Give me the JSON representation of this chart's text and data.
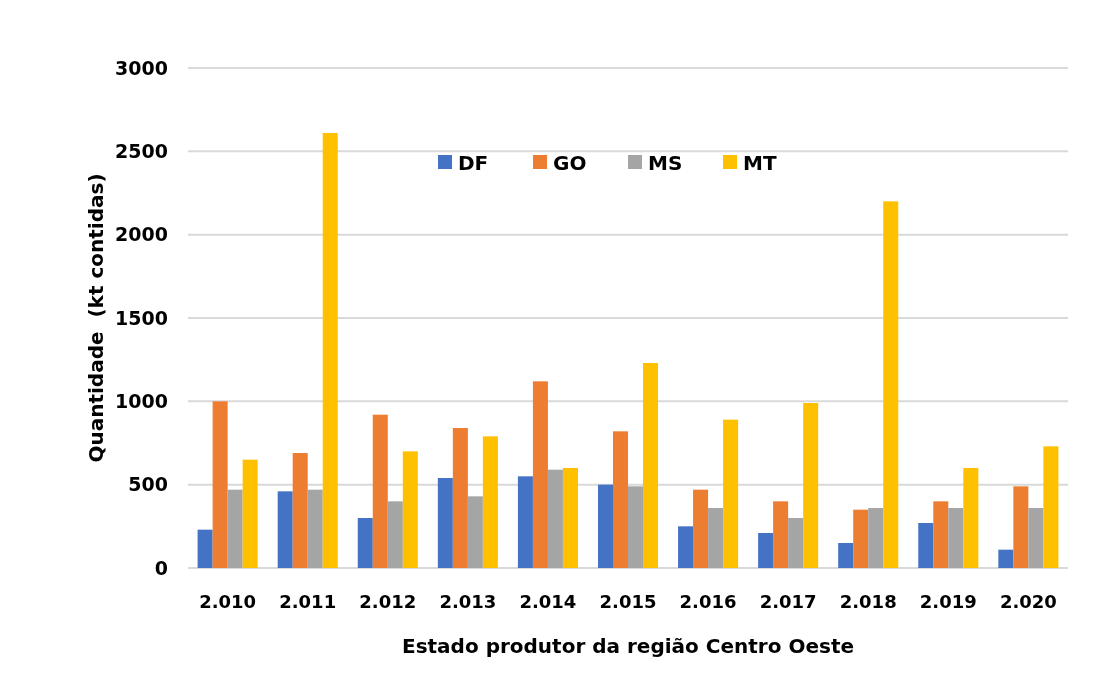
{
  "chart_data": {
    "type": "bar",
    "xlabel": "Estado produtor da região Centro Oeste",
    "ylabel": "Quantidade  (kt contidas)",
    "categories": [
      "2.010",
      "2.011",
      "2.012",
      "2.013",
      "2.014",
      "2.015",
      "2.016",
      "2.017",
      "2.018",
      "2.019",
      "2.020"
    ],
    "series": [
      {
        "name": "DF",
        "color": "#4472c4",
        "values": [
          230,
          460,
          300,
          540,
          550,
          500,
          250,
          210,
          150,
          270,
          110
        ]
      },
      {
        "name": "GO",
        "color": "#ed7d31",
        "values": [
          1000,
          690,
          920,
          840,
          1120,
          820,
          470,
          400,
          350,
          400,
          490
        ]
      },
      {
        "name": "MS",
        "color": "#a5a5a5",
        "values": [
          470,
          470,
          400,
          430,
          590,
          490,
          360,
          300,
          360,
          360,
          360
        ]
      },
      {
        "name": "MT",
        "color": "#ffc000",
        "values": [
          650,
          2610,
          700,
          790,
          600,
          1230,
          890,
          990,
          2200,
          600,
          730
        ]
      }
    ],
    "ylim": [
      0,
      3000
    ],
    "yticks": [
      0,
      500,
      1000,
      1500,
      2000,
      2500,
      3000
    ],
    "grid": "y",
    "legend": "top"
  }
}
